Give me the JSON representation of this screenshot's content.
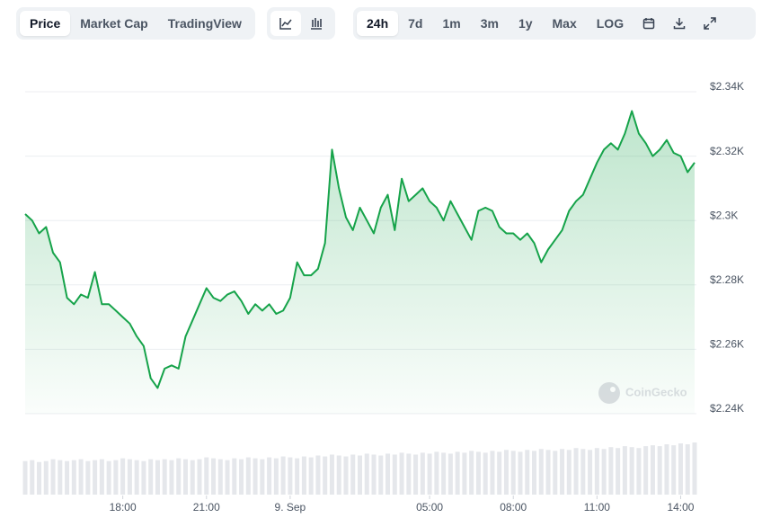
{
  "toolbar": {
    "tabs": [
      "Price",
      "Market Cap",
      "TradingView"
    ],
    "ranges": [
      "24h",
      "7d",
      "1m",
      "3m",
      "1y",
      "Max",
      "LOG"
    ]
  },
  "chart_data": {
    "type": "area",
    "categories": [
      null,
      null,
      null,
      null,
      null,
      null,
      null,
      null,
      null,
      null,
      null,
      null,
      null,
      null,
      "18:00",
      null,
      null,
      null,
      null,
      null,
      null,
      null,
      null,
      null,
      null,
      null,
      "21:00",
      null,
      null,
      null,
      null,
      null,
      null,
      null,
      null,
      null,
      null,
      null,
      "9. Sep",
      null,
      null,
      null,
      null,
      null,
      null,
      null,
      null,
      null,
      null,
      null,
      null,
      null,
      null,
      null,
      null,
      null,
      null,
      null,
      "05:00",
      null,
      null,
      null,
      null,
      null,
      null,
      null,
      null,
      null,
      null,
      null,
      "08:00",
      null,
      null,
      null,
      null,
      null,
      null,
      null,
      null,
      null,
      null,
      null,
      "11:00",
      null,
      null,
      null,
      null,
      null,
      null,
      null,
      null,
      null,
      null,
      null,
      "14:00",
      null,
      null
    ],
    "series": [
      {
        "color": "#16a34a",
        "values": [
          2302,
          2300,
          2296,
          2298,
          2290,
          2287,
          2276,
          2274,
          2277,
          2276,
          2284,
          2274,
          2274,
          2272,
          2270,
          2268,
          2264,
          2261,
          2251,
          2248,
          2254,
          2255,
          2254,
          2264,
          2269,
          2274,
          2279,
          2276,
          2275,
          2277,
          2278,
          2275,
          2271,
          2274,
          2272,
          2274,
          2271,
          2272,
          2276,
          2287,
          2283,
          2283,
          2285,
          2293,
          2322,
          2310,
          2301,
          2297,
          2304,
          2300,
          2296,
          2304,
          2308,
          2297,
          2313,
          2306,
          2308,
          2310,
          2306,
          2304,
          2300,
          2306,
          2302,
          2298,
          2294,
          2303,
          2304,
          2303,
          2298,
          2296,
          2296,
          2294,
          2296,
          2293,
          2287,
          2291,
          2294,
          2297,
          2303,
          2306,
          2308,
          2313,
          2318,
          2322,
          2324,
          2322,
          2327,
          2334,
          2327,
          2324,
          2320,
          2322,
          2325,
          2321,
          2320,
          2315,
          2318
        ]
      }
    ],
    "volume": {
      "color": "#e5e7eb",
      "values": [
        36,
        37,
        35,
        36,
        38,
        37,
        36,
        37,
        38,
        36,
        37,
        38,
        36,
        37,
        39,
        38,
        37,
        36,
        38,
        37,
        38,
        37,
        39,
        38,
        37,
        38,
        40,
        39,
        38,
        37,
        39,
        38,
        40,
        39,
        38,
        40,
        39,
        41,
        40,
        39,
        41,
        40,
        42,
        41,
        43,
        42,
        41,
        43,
        42,
        44,
        43,
        42,
        44,
        43,
        45,
        44,
        43,
        45,
        44,
        46,
        45,
        44,
        46,
        45,
        47,
        46,
        45,
        47,
        46,
        48,
        47,
        46,
        48,
        47,
        49,
        48,
        47,
        49,
        48,
        50,
        49,
        48,
        50,
        49,
        51,
        50,
        52,
        51,
        50,
        52,
        53,
        52,
        54,
        53,
        55,
        54,
        56
      ]
    },
    "ylim": [
      2240,
      2340
    ],
    "yticks": [
      {
        "value": 2240,
        "label": "$2.24K"
      },
      {
        "value": 2260,
        "label": "$2.26K"
      },
      {
        "value": 2280,
        "label": "$2.28K"
      },
      {
        "value": 2300,
        "label": "$2.3K"
      },
      {
        "value": 2320,
        "label": "$2.32K"
      },
      {
        "value": 2340,
        "label": "$2.34K"
      }
    ],
    "grid": true,
    "watermark": "CoinGecko"
  }
}
